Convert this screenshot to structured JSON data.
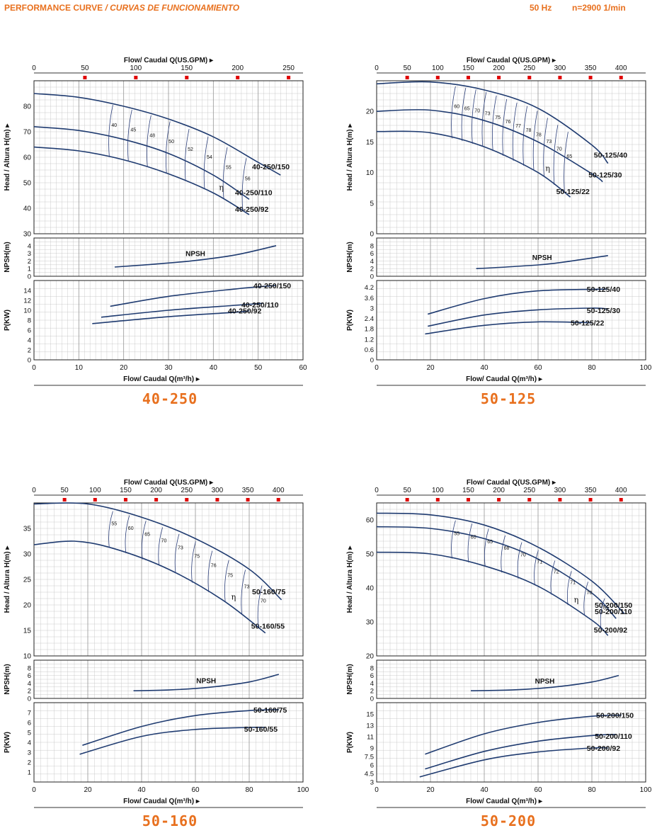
{
  "header": {
    "title": "PERFORMANCE CURVE",
    "title_italic": "/ CURVAS DE FUNCIONAMIENTO",
    "frequency": "50 Hz",
    "speed": "n=2900 1/min"
  },
  "axis_text": {
    "top_axis": "Flow/ Caudal Q(US.GPM)",
    "bottom_axis": "Flow/ Caudal Q(m³/h)",
    "head_axis": "Head / Altura H(m)",
    "npsh_axis": "NPSH(m)",
    "power_axis": "P(KW)",
    "npsh_label": "NPSH",
    "eff_symbol": "η"
  },
  "colors": {
    "curve": "#1f3b70",
    "grid": "#bfbfbf",
    "accent": "#e8701e",
    "marker": "#e00000",
    "eff": "#2c3f7a"
  },
  "chart_data": [
    {
      "id": "40-250",
      "model": "40-250",
      "type": "line",
      "xlim": [
        0,
        60
      ],
      "xticks": [
        0,
        10,
        20,
        30,
        40,
        50,
        60
      ],
      "gpm_ticks": [
        0,
        50,
        100,
        150,
        200,
        250
      ],
      "head": {
        "ylim": [
          30,
          90
        ],
        "yticks": [
          30,
          40,
          50,
          60,
          70,
          80
        ],
        "series": [
          {
            "name": "40-250/150",
            "x": [
              0,
              10,
              20,
              30,
              40,
              50,
              55
            ],
            "y": [
              85,
              83.5,
              80,
              75,
              68,
              58,
              53
            ]
          },
          {
            "name": "40-250/110",
            "x": [
              0,
              10,
              20,
              30,
              40,
              48
            ],
            "y": [
              72,
              70.5,
              67,
              61.5,
              53,
              43.5
            ]
          },
          {
            "name": "40-250/92",
            "x": [
              0,
              10,
              20,
              30,
              40,
              48
            ],
            "y": [
              64,
              62.5,
              59,
              53.5,
              46,
              37.5
            ]
          }
        ],
        "efficiency": [
          40,
          45,
          48,
          50,
          52,
          54,
          55,
          56
        ]
      },
      "npsh": {
        "ylim": [
          0,
          5
        ],
        "yticks": [
          0,
          1,
          2,
          3,
          4
        ],
        "x": [
          18,
          25,
          35,
          45,
          54
        ],
        "y": [
          1.2,
          1.5,
          2.0,
          2.8,
          4.0
        ]
      },
      "power": {
        "ylim": [
          0,
          16
        ],
        "yticks": [
          0,
          2,
          4,
          6,
          8,
          10,
          12,
          14
        ],
        "series": [
          {
            "name": "40-250/150",
            "x": [
              17,
              30,
              45,
              54
            ],
            "y": [
              10.8,
              12.8,
              14.3,
              15.0
            ]
          },
          {
            "name": "40-250/110",
            "x": [
              15,
              30,
              45,
              51
            ],
            "y": [
              8.6,
              10.0,
              11.0,
              11.4
            ]
          },
          {
            "name": "40-250/92",
            "x": [
              13,
              30,
              45,
              48
            ],
            "y": [
              7.3,
              8.7,
              9.6,
              9.9
            ]
          }
        ]
      }
    },
    {
      "id": "50-125",
      "model": "50-125",
      "type": "line",
      "xlim": [
        0,
        100
      ],
      "xticks": [
        0,
        20,
        40,
        60,
        80,
        100
      ],
      "gpm_ticks": [
        0,
        50,
        100,
        150,
        200,
        250,
        300,
        350,
        400
      ],
      "head": {
        "ylim": [
          0,
          25
        ],
        "yticks": [
          0,
          5,
          10,
          15,
          20
        ],
        "series": [
          {
            "name": "50-125/40",
            "x": [
              0,
              20,
              40,
              60,
              80,
              86
            ],
            "y": [
              24.5,
              24.8,
              23.5,
              20.5,
              14.5,
              11.5
            ]
          },
          {
            "name": "50-125/30",
            "x": [
              0,
              20,
              40,
              60,
              80,
              84
            ],
            "y": [
              20.0,
              20.2,
              18.5,
              15.0,
              9.8,
              8.5
            ]
          },
          {
            "name": "50-125/22",
            "x": [
              0,
              20,
              40,
              60,
              72
            ],
            "y": [
              16.7,
              16.5,
              14.2,
              10.0,
              6.0
            ]
          }
        ],
        "efficiency": [
          60,
          65,
          70,
          73,
          75,
          76,
          77,
          78,
          78,
          73,
          70,
          65
        ]
      },
      "npsh": {
        "ylim": [
          0,
          10
        ],
        "yticks": [
          0,
          2,
          4,
          6,
          8
        ],
        "x": [
          37,
          50,
          65,
          86
        ],
        "y": [
          2.0,
          2.5,
          3.3,
          5.4
        ]
      },
      "power": {
        "ylim": [
          0,
          4.6
        ],
        "yticks": [
          0,
          0.6,
          1.2,
          1.8,
          2.4,
          3,
          3.6,
          4.2
        ],
        "series": [
          {
            "name": "50-125/40",
            "x": [
              19,
              40,
              60,
              86
            ],
            "y": [
              2.65,
              3.55,
              4.0,
              4.1
            ]
          },
          {
            "name": "50-125/30",
            "x": [
              19,
              40,
              60,
              80,
              86
            ],
            "y": [
              1.95,
              2.6,
              2.9,
              3.0,
              2.95
            ]
          },
          {
            "name": "50-125/22",
            "x": [
              18,
              40,
              60,
              80
            ],
            "y": [
              1.5,
              2.0,
              2.2,
              2.15
            ]
          }
        ]
      }
    },
    {
      "id": "50-160",
      "model": "50-160",
      "type": "line",
      "xlim": [
        0,
        100
      ],
      "xticks": [
        0,
        20,
        40,
        60,
        80,
        100
      ],
      "gpm_ticks": [
        0,
        50,
        100,
        150,
        200,
        250,
        300,
        350,
        400
      ],
      "head": {
        "ylim": [
          10,
          40
        ],
        "yticks": [
          10,
          15,
          20,
          25,
          30,
          35
        ],
        "series": [
          {
            "name": "50-160/75",
            "x": [
              0,
              20,
              40,
              60,
              80,
              92
            ],
            "y": [
              39.8,
              39.8,
              37.2,
              33.0,
              27.0,
              21.0
            ]
          },
          {
            "name": "50-160/55",
            "x": [
              0,
              15,
              30,
              50,
              70,
              86
            ],
            "y": [
              31.8,
              32.5,
              31.0,
              27.0,
              21.0,
              14.5
            ]
          }
        ],
        "efficiency": [
          55,
          60,
          65,
          70,
          73,
          75,
          76,
          75,
          73,
          70
        ]
      },
      "npsh": {
        "ylim": [
          0,
          10
        ],
        "yticks": [
          0,
          2,
          4,
          6,
          8
        ],
        "x": [
          37,
          50,
          65,
          80,
          91
        ],
        "y": [
          2.0,
          2.2,
          2.9,
          4.3,
          6.3
        ]
      },
      "power": {
        "ylim": [
          0,
          8
        ],
        "yticks": [
          1,
          2,
          3,
          4,
          5,
          6,
          7
        ],
        "series": [
          {
            "name": "50-160/75",
            "x": [
              18,
              40,
              60,
              80,
              91
            ],
            "y": [
              3.7,
              5.6,
              6.7,
              7.2,
              7.3
            ]
          },
          {
            "name": "50-160/55",
            "x": [
              17,
              40,
              60,
              80,
              86
            ],
            "y": [
              2.8,
              4.6,
              5.3,
              5.5,
              5.5
            ]
          }
        ]
      }
    },
    {
      "id": "50-200",
      "model": "50-200",
      "type": "line",
      "xlim": [
        0,
        100
      ],
      "xticks": [
        0,
        20,
        40,
        60,
        80,
        100
      ],
      "gpm_ticks": [
        0,
        50,
        100,
        150,
        200,
        250,
        300,
        350,
        400
      ],
      "head": {
        "ylim": [
          20,
          65
        ],
        "yticks": [
          20,
          30,
          40,
          50,
          60
        ],
        "series": [
          {
            "name": "50-200/150",
            "x": [
              0,
              20,
              40,
              60,
              80,
              92
            ],
            "y": [
              62,
              61.5,
              58.5,
              52,
              42,
              32.5
            ]
          },
          {
            "name": "50-200/110",
            "x": [
              0,
              20,
              40,
              60,
              80,
              89
            ],
            "y": [
              58,
              57.5,
              54.5,
              48.5,
              38.5,
              31
            ]
          },
          {
            "name": "50-200/92",
            "x": [
              0,
              20,
              40,
              60,
              80,
              86
            ],
            "y": [
              50.5,
              50,
              46.5,
              40.5,
              30.5,
              26
            ]
          }
        ],
        "efficiency": [
          55,
          60,
          65,
          68,
          70,
          71,
          72,
          71,
          70,
          65
        ]
      },
      "npsh": {
        "ylim": [
          0,
          10
        ],
        "yticks": [
          0,
          2,
          4,
          6,
          8
        ],
        "x": [
          35,
          50,
          65,
          80,
          90
        ],
        "y": [
          2.0,
          2.2,
          2.9,
          4.3,
          6.0
        ]
      },
      "power": {
        "ylim": [
          3,
          17
        ],
        "yticks": [
          3,
          4.5,
          6,
          7.5,
          9,
          11,
          13,
          15
        ],
        "ytick_labels": [
          "3",
          "4.5",
          "6",
          "7.5",
          "9",
          "11",
          "13",
          "15"
        ],
        "series": [
          {
            "name": "50-200/150",
            "x": [
              18,
              40,
              60,
              80,
              91
            ],
            "y": [
              7.9,
              11.5,
              13.5,
              14.6,
              14.8
            ]
          },
          {
            "name": "50-200/110",
            "x": [
              18,
              40,
              60,
              80,
              89
            ],
            "y": [
              5.3,
              8.4,
              10.2,
              11.2,
              11.4
            ]
          },
          {
            "name": "50-200/92",
            "x": [
              16,
              40,
              60,
              80,
              86
            ],
            "y": [
              3.9,
              6.9,
              8.3,
              9.0,
              9.0
            ]
          }
        ]
      }
    }
  ]
}
